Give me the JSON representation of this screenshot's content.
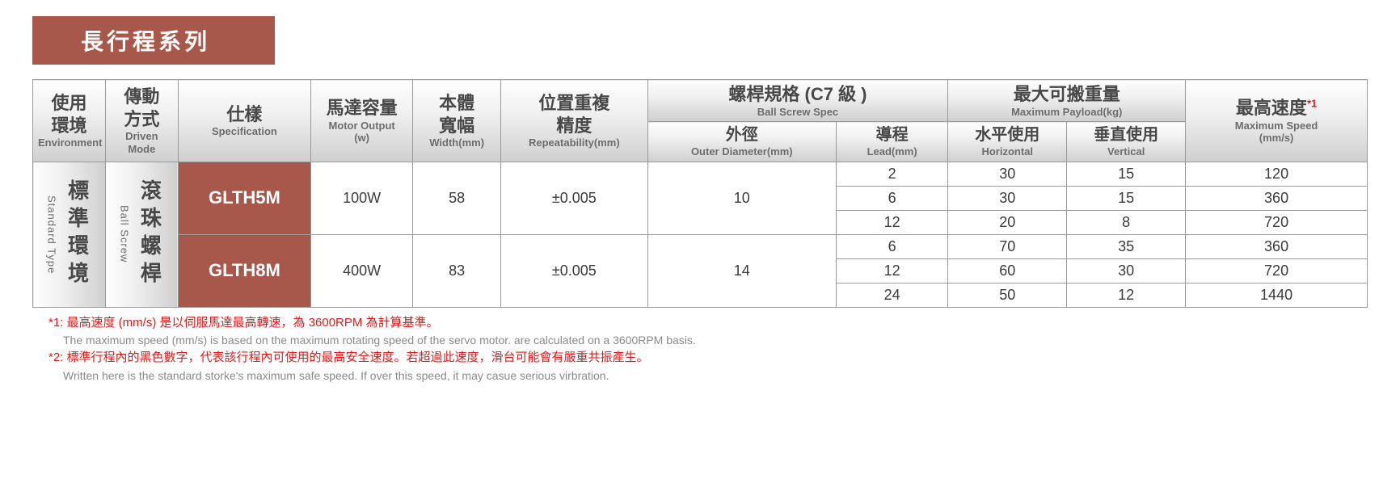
{
  "title": {
    "text": "長行程系列",
    "bg_color": "#a8584a",
    "text_color": "#ffffff"
  },
  "colors": {
    "spec_bg": "#a8584a",
    "spec_text": "#ffffff",
    "header_text_main": "#484848",
    "header_text_sub": "#6d6d6d",
    "border": "#9a9a9a",
    "footnote_red": "#e01a1a",
    "footnote_grey": "#8a8a8a"
  },
  "headers": {
    "env": {
      "main": "使用\n環境",
      "sub": "Environment"
    },
    "drive": {
      "main": "傳動\n方式",
      "sub": "Driven Mode"
    },
    "spec": {
      "main": "仕樣",
      "sub": "Specification"
    },
    "motor": {
      "main": "馬達容量",
      "sub": "Motor Output\n(w)"
    },
    "width": {
      "main": "本體\n寬幅",
      "sub": "Width(mm)"
    },
    "rep": {
      "main": "位置重複\n精度",
      "sub": "Repeatability(mm)"
    },
    "screw": {
      "main": "螺桿規格 (C7 級 )",
      "sub": "Ball Screw Spec"
    },
    "od": {
      "main": "外徑",
      "sub": "Outer Diameter(mm)"
    },
    "lead": {
      "main": "導程",
      "sub": "Lead(mm)"
    },
    "payload": {
      "main": "最大可搬重量",
      "sub": "Maximum Payload(kg)"
    },
    "h": {
      "main": "水平使用",
      "sub": "Horizontal"
    },
    "v": {
      "main": "垂直使用",
      "sub": "Vertical"
    },
    "speed": {
      "main": "最高速度",
      "sub": "Maximum Speed\n(mm/s)",
      "sup": "*1"
    }
  },
  "side": {
    "env": {
      "main": "標準環境",
      "sub": "Standard Type"
    },
    "drive": {
      "main": "滾珠螺桿",
      "sub": "Ball Screw"
    }
  },
  "models": [
    {
      "name": "GLTH5M",
      "motor": "100W",
      "width": "58",
      "rep": "±0.005",
      "od": "10",
      "rows": [
        {
          "lead": "2",
          "h": "30",
          "v": "15",
          "speed": "120"
        },
        {
          "lead": "6",
          "h": "30",
          "v": "15",
          "speed": "360"
        },
        {
          "lead": "12",
          "h": "20",
          "v": "8",
          "speed": "720"
        }
      ]
    },
    {
      "name": "GLTH8M",
      "motor": "400W",
      "width": "83",
      "rep": "±0.005",
      "od": "14",
      "rows": [
        {
          "lead": "6",
          "h": "70",
          "v": "35",
          "speed": "360"
        },
        {
          "lead": "12",
          "h": "60",
          "v": "30",
          "speed": "720"
        },
        {
          "lead": "24",
          "h": "50",
          "v": "12",
          "speed": "1440"
        }
      ]
    }
  ],
  "footnotes": {
    "n1_red": "*1: 最高速度 (mm/s) 是以伺服馬達最高轉速，為 3600RPM 為計算基準。",
    "n1_grey": "The maximum speed (mm/s) is based on the maximum rotating speed of the servo motor. are calculated on a 3600RPM basis.",
    "n2_red": "*2: 標準行程內的黑色數字，代表該行程內可使用的最高安全速度。若超過此速度，滑台可能會有嚴重共振產生。",
    "n2_grey": "Written here is the standard storke's maximum safe speed. If over this speed, it may casue serious virbration."
  }
}
